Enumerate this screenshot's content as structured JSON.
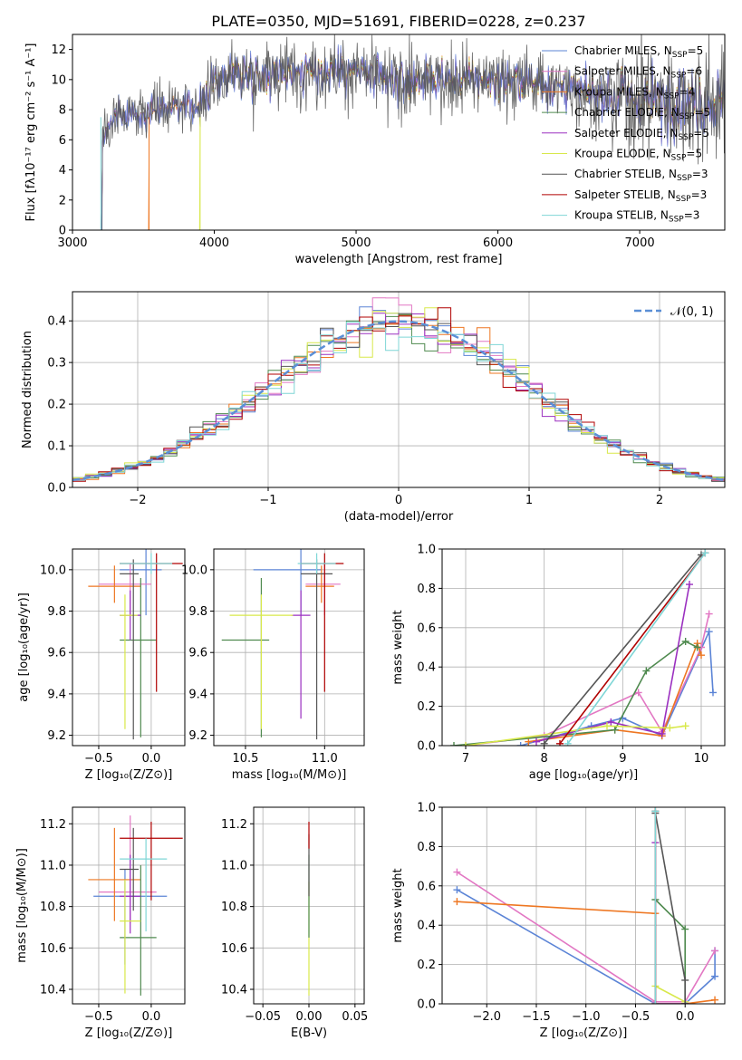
{
  "figure_title": "PLATE=0350, MJD=51691, FIBERID=0228, z=0.237",
  "colors": {
    "Chabrier MILES": "#5b84d6",
    "Salpeter MILES": "#e277c3",
    "Kroupa MILES": "#ee7722",
    "Chabrier ELODIE": "#4f8a4f",
    "Salpeter ELODIE": "#9b30c0",
    "Kroupa ELODIE": "#d8e84a",
    "Chabrier STELIB": "#555555",
    "Salpeter STELIB": "#b00000",
    "Kroupa STELIB": "#7fd6d6",
    "gaussian": "#5b8fd6"
  },
  "chart_data": [
    {
      "type": "line",
      "xlabel": "wavelength [Angstrom, rest frame]",
      "ylabel": "Flux [fλ10⁻¹⁷ erg cm⁻² s⁻¹ A⁻¹]",
      "xlim": [
        3000,
        7600
      ],
      "ylim": [
        0,
        13
      ],
      "xticks": [
        3000,
        4000,
        5000,
        6000,
        7000
      ],
      "yticks": [
        0,
        2,
        4,
        6,
        8,
        10,
        12
      ],
      "legend_placement": "top-right",
      "legend": [
        {
          "text": "Chabrier MILES, N",
          "sub": "SSP",
          "n": "=5",
          "series": "Chabrier MILES"
        },
        {
          "text": "Salpeter MILES, N",
          "sub": "SSP",
          "n": "=6",
          "series": "Salpeter MILES"
        },
        {
          "text": "Kroupa MILES, N",
          "sub": "SSP",
          "n": "=4",
          "series": "Kroupa MILES"
        },
        {
          "text": "Chabrier ELODIE, N",
          "sub": "SSP",
          "n": "=5",
          "series": "Chabrier ELODIE"
        },
        {
          "text": "Salpeter ELODIE, N",
          "sub": "SSP",
          "n": "=5",
          "series": "Salpeter ELODIE"
        },
        {
          "text": "Kroupa ELODIE, N",
          "sub": "SSP",
          "n": "=5",
          "series": "Kroupa ELODIE"
        },
        {
          "text": "Chabrier STELIB, N",
          "sub": "SSP",
          "n": "=3",
          "series": "Chabrier STELIB"
        },
        {
          "text": "Salpeter STELIB, N",
          "sub": "SSP",
          "n": "=3",
          "series": "Salpeter STELIB"
        },
        {
          "text": "Kroupa STELIB, N",
          "sub": "SSP",
          "n": "=3",
          "series": "Kroupa STELIB"
        }
      ],
      "continuum": [
        [
          3200,
          0.0
        ],
        [
          3210,
          6.3
        ],
        [
          3300,
          7.5
        ],
        [
          3500,
          7.8
        ],
        [
          3600,
          8.2
        ],
        [
          3700,
          8.4
        ],
        [
          3800,
          8.1
        ],
        [
          3900,
          8.4
        ],
        [
          4000,
          9.8
        ],
        [
          4100,
          10.5
        ],
        [
          4300,
          10.3
        ],
        [
          4500,
          10.6
        ],
        [
          4800,
          10.6
        ],
        [
          5000,
          10.6
        ],
        [
          5200,
          9.8
        ],
        [
          5500,
          10.0
        ],
        [
          5800,
          10.1
        ],
        [
          6000,
          10.0
        ],
        [
          6300,
          9.8
        ],
        [
          6600,
          9.2
        ],
        [
          7000,
          8.7
        ],
        [
          7300,
          8.6
        ],
        [
          7600,
          8.4
        ]
      ],
      "noise_amplitude": 1.0,
      "cutoffs": [
        {
          "series": "Kroupa STELIB",
          "start": 3200
        },
        {
          "series": "Kroupa MILES",
          "start": 3540
        },
        {
          "series": "Kroupa ELODIE",
          "start": 3900
        }
      ]
    },
    {
      "type": "histogram",
      "xlabel": "(data-model)/error",
      "ylabel": "Normed distribution",
      "xlim": [
        -2.5,
        2.5
      ],
      "ylim": [
        0,
        0.47
      ],
      "xticks": [
        -2,
        -1,
        0,
        1,
        2
      ],
      "yticks": [
        0.0,
        0.1,
        0.2,
        0.3,
        0.4
      ],
      "bin_width": 0.1,
      "legend_placement": "top-right",
      "gaussian_label": "𝒩(0, 1)",
      "series": [
        "Chabrier MILES",
        "Salpeter MILES",
        "Kroupa MILES",
        "Chabrier ELODIE",
        "Salpeter ELODIE",
        "Kroupa ELODIE",
        "Chabrier STELIB",
        "Salpeter STELIB",
        "Kroupa STELIB"
      ]
    },
    {
      "type": "errorbar",
      "xlabel": "Z [log₁₀(Z/Z⊙)]",
      "ylabel": "age  [log₁₀(age/yr)]",
      "xlim": [
        -0.75,
        0.32
      ],
      "ylim": [
        9.15,
        10.1
      ],
      "xticks": [
        -0.5,
        0.0
      ],
      "yticks": [
        9.2,
        9.4,
        9.6,
        9.8,
        10.0
      ],
      "points": [
        {
          "series": "Chabrier MILES",
          "x": -0.05,
          "xe": [
            0.25,
            0.15
          ],
          "y": 10.0,
          "ye": [
            0.22,
            0.1
          ]
        },
        {
          "series": "Salpeter MILES",
          "x": -0.2,
          "xe": [
            0.3,
            0.2
          ],
          "y": 9.93,
          "ye": [
            0.15,
            0.1
          ]
        },
        {
          "series": "Kroupa MILES",
          "x": -0.35,
          "xe": [
            0.25,
            0.25
          ],
          "y": 9.92,
          "ye": [
            0.08,
            0.1
          ]
        },
        {
          "series": "Chabrier ELODIE",
          "x": -0.1,
          "xe": [
            0.2,
            0.15
          ],
          "y": 9.66,
          "ye": [
            0.47,
            0.3
          ]
        },
        {
          "series": "Salpeter ELODIE",
          "x": -0.2,
          "xe": [
            0.1,
            0.1
          ],
          "y": 9.78,
          "ye": [
            0.12,
            0.12
          ]
        },
        {
          "series": "Kroupa ELODIE",
          "x": -0.25,
          "xe": [
            0.05,
            0.12
          ],
          "y": 9.78,
          "ye": [
            0.55,
            0.1
          ]
        },
        {
          "series": "Chabrier STELIB",
          "x": -0.17,
          "xe": [
            0.13,
            0.05
          ],
          "y": 9.98,
          "ye": [
            0.8,
            0.07
          ]
        },
        {
          "series": "Salpeter STELIB",
          "x": 0.05,
          "xe": [
            0.35,
            0.25
          ],
          "y": 10.03,
          "ye": [
            0.62,
            0.05
          ]
        },
        {
          "series": "Kroupa STELIB",
          "x": 0.0,
          "xe": [
            0.3,
            0.2
          ],
          "y": 10.03,
          "ye": [
            0.05,
            0.05
          ]
        }
      ]
    },
    {
      "type": "errorbar",
      "xlabel": "mass [log₁₀(M/M⊙)]",
      "ylabel": "",
      "xlim": [
        10.3,
        11.25
      ],
      "ylim": [
        9.15,
        10.1
      ],
      "xticks": [
        10.5,
        11.0
      ],
      "yticks": [
        9.2,
        9.4,
        9.6,
        9.8,
        10.0
      ],
      "points": [
        {
          "series": "Chabrier MILES",
          "x": 10.85,
          "xe": [
            0.3,
            0.13
          ],
          "y": 10.0,
          "ye": [
            0.22,
            0.1
          ]
        },
        {
          "series": "Salpeter MILES",
          "x": 11.0,
          "xe": [
            0.12,
            0.1
          ],
          "y": 9.93,
          "ye": [
            0.15,
            0.1
          ]
        },
        {
          "series": "Kroupa MILES",
          "x": 10.98,
          "xe": [
            0.1,
            0.08
          ],
          "y": 9.92,
          "ye": [
            0.08,
            0.1
          ]
        },
        {
          "series": "Chabrier ELODIE",
          "x": 10.6,
          "xe": [
            0.25,
            0.05
          ],
          "y": 9.66,
          "ye": [
            0.47,
            0.3
          ]
        },
        {
          "series": "Salpeter ELODIE",
          "x": 10.85,
          "xe": [
            0.06,
            0.06
          ],
          "y": 9.78,
          "ye": [
            0.5,
            0.12
          ]
        },
        {
          "series": "Kroupa ELODIE",
          "x": 10.6,
          "xe": [
            0.2,
            0.2
          ],
          "y": 9.78,
          "ye": [
            0.55,
            0.1
          ]
        },
        {
          "series": "Chabrier STELIB",
          "x": 10.95,
          "xe": [
            0.1,
            0.1
          ],
          "y": 9.98,
          "ye": [
            0.8,
            0.07
          ]
        },
        {
          "series": "Salpeter STELIB",
          "x": 11.0,
          "xe": [
            0.15,
            0.12
          ],
          "y": 10.03,
          "ye": [
            0.62,
            0.05
          ]
        },
        {
          "series": "Kroupa STELIB",
          "x": 10.95,
          "xe": [
            0.12,
            0.12
          ],
          "y": 10.03,
          "ye": [
            0.05,
            0.05
          ]
        }
      ]
    },
    {
      "type": "line",
      "xlabel": "age  [log₁₀(age/yr)]",
      "ylabel": "mass weight",
      "xlim": [
        6.7,
        10.3
      ],
      "ylim": [
        0,
        1
      ],
      "xticks": [
        7,
        8,
        9,
        10
      ],
      "yticks": [
        0.0,
        0.2,
        0.4,
        0.6,
        0.8,
        1.0
      ],
      "series": [
        {
          "name": "Chabrier MILES",
          "points": [
            [
              7.7,
              0.0
            ],
            [
              8.6,
              0.1
            ],
            [
              9.0,
              0.14
            ],
            [
              9.5,
              0.05
            ],
            [
              10.1,
              0.58
            ],
            [
              10.15,
              0.27
            ]
          ]
        },
        {
          "name": "Salpeter MILES",
          "points": [
            [
              7.0,
              0.0
            ],
            [
              8.0,
              0.05
            ],
            [
              9.2,
              0.27
            ],
            [
              9.5,
              0.07
            ],
            [
              10.0,
              0.5
            ],
            [
              10.1,
              0.67
            ]
          ]
        },
        {
          "name": "Kroupa MILES",
          "points": [
            [
              7.8,
              0.02
            ],
            [
              8.9,
              0.08
            ],
            [
              9.5,
              0.05
            ],
            [
              9.95,
              0.52
            ],
            [
              10.0,
              0.46
            ]
          ]
        },
        {
          "name": "Chabrier ELODIE",
          "points": [
            [
              6.85,
              0.0
            ],
            [
              8.9,
              0.08
            ],
            [
              9.3,
              0.38
            ],
            [
              9.8,
              0.53
            ],
            [
              9.95,
              0.5
            ]
          ]
        },
        {
          "name": "Salpeter ELODIE",
          "points": [
            [
              7.9,
              0.02
            ],
            [
              8.85,
              0.12
            ],
            [
              9.5,
              0.06
            ],
            [
              9.85,
              0.82
            ]
          ]
        },
        {
          "name": "Kroupa ELODIE",
          "points": [
            [
              7.0,
              0.0
            ],
            [
              8.8,
              0.1
            ],
            [
              9.6,
              0.09
            ],
            [
              9.8,
              0.1
            ]
          ]
        },
        {
          "name": "Chabrier STELIB",
          "points": [
            [
              8.0,
              0.01
            ],
            [
              10.0,
              0.97
            ]
          ]
        },
        {
          "name": "Salpeter STELIB",
          "points": [
            [
              8.2,
              0.01
            ],
            [
              10.05,
              0.98
            ]
          ]
        },
        {
          "name": "Kroupa STELIB",
          "points": [
            [
              8.3,
              0.01
            ],
            [
              10.05,
              0.98
            ]
          ]
        }
      ]
    },
    {
      "type": "errorbar",
      "xlabel": "Z [log₁₀(Z/Z⊙)]",
      "ylabel": "mass [log₁₀(M/M⊙)]",
      "xlim": [
        -0.75,
        0.32
      ],
      "ylim": [
        10.33,
        11.28
      ],
      "xticks": [
        -0.5,
        0.0
      ],
      "yticks": [
        10.4,
        10.6,
        10.8,
        11.0,
        11.2
      ],
      "points": [
        {
          "series": "Chabrier MILES",
          "x": -0.25,
          "xe": [
            0.3,
            0.4
          ],
          "y": 10.85,
          "ye": [
            0.33,
            0.13
          ]
        },
        {
          "series": "Salpeter MILES",
          "x": -0.2,
          "xe": [
            0.3,
            0.25
          ],
          "y": 10.87,
          "ye": [
            0.15,
            0.37
          ]
        },
        {
          "series": "Kroupa MILES",
          "x": -0.35,
          "xe": [
            0.25,
            0.25
          ],
          "y": 10.93,
          "ye": [
            0.2,
            0.25
          ]
        },
        {
          "series": "Chabrier ELODIE",
          "x": -0.1,
          "xe": [
            0.2,
            0.15
          ],
          "y": 10.65,
          "ye": [
            0.28,
            0.35
          ]
        },
        {
          "series": "Salpeter ELODIE",
          "x": -0.2,
          "xe": [
            0.1,
            0.1
          ],
          "y": 10.85,
          "ye": [
            0.18,
            0.2
          ]
        },
        {
          "series": "Kroupa ELODIE",
          "x": -0.25,
          "xe": [
            0.05,
            0.15
          ],
          "y": 10.73,
          "ye": [
            0.35,
            0.2
          ]
        },
        {
          "series": "Chabrier STELIB",
          "x": -0.17,
          "xe": [
            0.13,
            0.05
          ],
          "y": 10.98,
          "ye": [
            0.2,
            0.2
          ]
        },
        {
          "series": "Salpeter STELIB",
          "x": 0.0,
          "xe": [
            0.3,
            0.3
          ],
          "y": 11.13,
          "ye": [
            0.3,
            0.08
          ]
        },
        {
          "series": "Kroupa STELIB",
          "x": -0.05,
          "xe": [
            0.25,
            0.2
          ],
          "y": 11.03,
          "ye": [
            0.35,
            0.1
          ]
        }
      ]
    },
    {
      "type": "errorbar",
      "xlabel": "E(B-V)",
      "ylabel": "",
      "xlim": [
        -0.06,
        0.06
      ],
      "ylim": [
        10.33,
        11.28
      ],
      "xticks": [
        -0.05,
        0.0,
        0.05
      ],
      "yticks": [
        10.4,
        10.6,
        10.8,
        11.0,
        11.2
      ],
      "points": [
        {
          "series": "Kroupa ELODIE",
          "x": 0.0,
          "xe": [
            0,
            0
          ],
          "y": 10.72,
          "ye": [
            0.35,
            0.2
          ]
        },
        {
          "series": "Chabrier ELODIE",
          "x": 0.0,
          "xe": [
            0,
            0
          ],
          "y": 10.85,
          "ye": [
            0.2,
            0.2
          ]
        },
        {
          "series": "Chabrier STELIB",
          "x": 0.0,
          "xe": [
            0,
            0
          ],
          "y": 11.0,
          "ye": [
            0.15,
            0.15
          ]
        },
        {
          "series": "Salpeter STELIB",
          "x": 0.0,
          "xe": [
            0,
            0
          ],
          "y": 11.13,
          "ye": [
            0.05,
            0.08
          ]
        }
      ]
    },
    {
      "type": "line",
      "xlabel": "Z [log₁₀(Z/Z⊙)]",
      "ylabel": "mass weight",
      "xlim": [
        -2.45,
        0.4
      ],
      "ylim": [
        0,
        1
      ],
      "xticks": [
        -2.0,
        -1.5,
        -1.0,
        -0.5,
        0.0
      ],
      "yticks": [
        0.0,
        0.2,
        0.4,
        0.6,
        0.8,
        1.0
      ],
      "series": [
        {
          "name": "Chabrier MILES",
          "points": [
            [
              -2.3,
              0.58
            ],
            [
              -0.3,
              0.0
            ],
            [
              0.0,
              0.0
            ],
            [
              0.3,
              0.14
            ],
            [
              0.3,
              0.27
            ]
          ]
        },
        {
          "name": "Salpeter MILES",
          "points": [
            [
              -2.3,
              0.67
            ],
            [
              -0.3,
              0.01
            ],
            [
              0.0,
              0.01
            ],
            [
              0.3,
              0.27
            ]
          ]
        },
        {
          "name": "Kroupa MILES",
          "points": [
            [
              -2.3,
              0.52
            ],
            [
              -0.3,
              0.46
            ],
            [
              -0.3,
              0.0
            ],
            [
              0.0,
              0.0
            ],
            [
              0.3,
              0.02
            ]
          ]
        },
        {
          "name": "Chabrier ELODIE",
          "points": [
            [
              -0.3,
              0.53
            ],
            [
              0.0,
              0.38
            ],
            [
              0.0,
              0.0
            ]
          ]
        },
        {
          "name": "Salpeter ELODIE",
          "points": [
            [
              -0.3,
              0.82
            ],
            [
              -0.3,
              0.0
            ],
            [
              0.0,
              0.0
            ]
          ]
        },
        {
          "name": "Kroupa ELODIE",
          "points": [
            [
              -0.3,
              0.09
            ],
            [
              0.0,
              0.01
            ]
          ]
        },
        {
          "name": "Chabrier STELIB",
          "points": [
            [
              -0.3,
              0.97
            ],
            [
              0.0,
              0.12
            ],
            [
              0.0,
              0.0
            ]
          ]
        },
        {
          "name": "Salpeter STELIB",
          "points": [
            [
              -0.3,
              0.98
            ],
            [
              -0.3,
              0.0
            ]
          ]
        },
        {
          "name": "Kroupa STELIB",
          "points": [
            [
              -0.3,
              0.98
            ],
            [
              -0.3,
              0.0
            ]
          ]
        }
      ]
    }
  ]
}
